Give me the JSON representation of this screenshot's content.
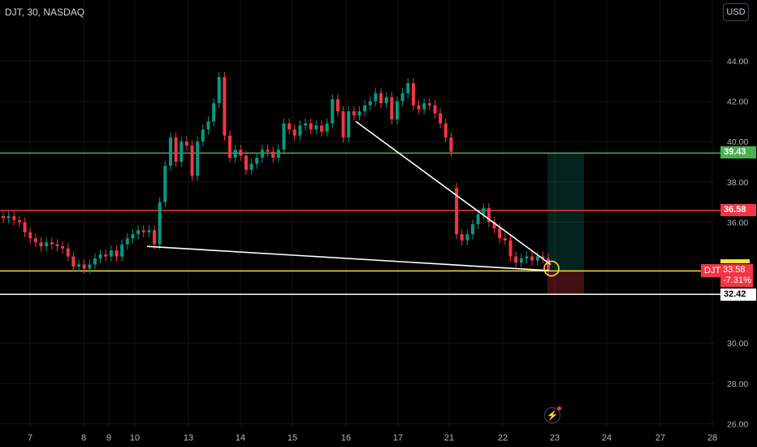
{
  "header": {
    "symbol_info": "DJT, 30, NASDAQ",
    "currency": "USD"
  },
  "levels": {
    "green": {
      "price": 39.43,
      "label": "39.43",
      "color": "#4caf50"
    },
    "red": {
      "price": 36.58,
      "label": "36.58",
      "color": "#f23645"
    },
    "yellow": {
      "price": 33.58,
      "color": "#f5e03a"
    },
    "white": {
      "price": 32.42,
      "label": "32.42",
      "color": "#ffffff"
    }
  },
  "last_price": {
    "ticker": "DJT",
    "price": "33.58",
    "change": "-7.31%"
  },
  "colors": {
    "up": "#089981",
    "down": "#f23645",
    "axis_text": "#b2b5be"
  },
  "icons": {
    "flash": "flash-icon"
  },
  "chart_data": {
    "type": "candlestick",
    "title": "",
    "y_axis_labels": [
      "44.00",
      "42.00",
      "40.00",
      "38.00",
      "36.00",
      "30.00",
      "28.00",
      "26.00"
    ],
    "x_axis_labels": [
      "7",
      "8",
      "9",
      "10",
      "13",
      "14",
      "15",
      "16",
      "17",
      "21",
      "22",
      "23",
      "24",
      "27",
      "28"
    ],
    "ylim": [
      26,
      46.4
    ],
    "candles": [
      {
        "x": "7",
        "o": 36.3,
        "c": 36.2
      },
      {
        "x": "7",
        "o": 36.2,
        "c": 36.3
      },
      {
        "x": "7",
        "o": 36.3,
        "c": 36.1
      },
      {
        "x": "7",
        "o": 36.1,
        "c": 36.0
      },
      {
        "x": "7",
        "o": 36.0,
        "c": 35.5
      },
      {
        "x": "7",
        "o": 35.5,
        "c": 35.2
      },
      {
        "x": "8",
        "o": 35.2,
        "c": 35.0
      },
      {
        "x": "8",
        "o": 35.0,
        "c": 34.8
      },
      {
        "x": "8",
        "o": 34.8,
        "c": 35.0
      },
      {
        "x": "8",
        "o": 35.0,
        "c": 34.9
      },
      {
        "x": "8",
        "o": 34.9,
        "c": 34.8
      },
      {
        "x": "8",
        "o": 34.8,
        "c": 34.7
      },
      {
        "x": "8",
        "o": 34.7,
        "c": 34.3
      },
      {
        "x": "8",
        "o": 34.3,
        "c": 33.8
      },
      {
        "x": "9",
        "o": 33.8,
        "c": 33.9
      },
      {
        "x": "9",
        "o": 33.9,
        "c": 33.7
      },
      {
        "x": "9",
        "o": 33.7,
        "c": 33.9
      },
      {
        "x": "9",
        "o": 33.9,
        "c": 34.2
      },
      {
        "x": "9",
        "o": 34.2,
        "c": 34.4
      },
      {
        "x": "9",
        "o": 34.4,
        "c": 34.3
      },
      {
        "x": "10",
        "o": 34.3,
        "c": 34.6
      },
      {
        "x": "10",
        "o": 34.6,
        "c": 34.3
      },
      {
        "x": "10",
        "o": 34.3,
        "c": 34.9
      },
      {
        "x": "10",
        "o": 34.9,
        "c": 35.2
      },
      {
        "x": "10",
        "o": 35.2,
        "c": 35.4
      },
      {
        "x": "10",
        "o": 35.4,
        "c": 35.6
      },
      {
        "x": "10",
        "o": 35.6,
        "c": 35.5
      },
      {
        "x": "10",
        "o": 35.5,
        "c": 35.6
      },
      {
        "x": "13",
        "o": 35.6,
        "c": 34.9
      },
      {
        "x": "13",
        "o": 34.9,
        "c": 37.0
      },
      {
        "x": "13",
        "o": 37.0,
        "c": 38.8
      },
      {
        "x": "13",
        "o": 38.8,
        "c": 40.2
      },
      {
        "x": "13",
        "o": 40.2,
        "c": 39.0
      },
      {
        "x": "13",
        "o": 39.0,
        "c": 40.0
      },
      {
        "x": "13",
        "o": 40.0,
        "c": 39.8
      },
      {
        "x": "13",
        "o": 39.8,
        "c": 38.3
      },
      {
        "x": "13",
        "o": 38.3,
        "c": 40.0
      },
      {
        "x": "13",
        "o": 40.0,
        "c": 40.6
      },
      {
        "x": "14",
        "o": 40.6,
        "c": 41.0
      },
      {
        "x": "14",
        "o": 41.0,
        "c": 41.9
      },
      {
        "x": "14",
        "o": 41.9,
        "c": 43.2
      },
      {
        "x": "14",
        "o": 43.2,
        "c": 40.3
      },
      {
        "x": "14",
        "o": 40.3,
        "c": 39.2
      },
      {
        "x": "14",
        "o": 39.2,
        "c": 39.6
      },
      {
        "x": "14",
        "o": 39.6,
        "c": 39.3
      },
      {
        "x": "14",
        "o": 39.3,
        "c": 38.6
      },
      {
        "x": "14",
        "o": 38.6,
        "c": 38.9
      },
      {
        "x": "15",
        "o": 38.9,
        "c": 39.2
      },
      {
        "x": "15",
        "o": 39.2,
        "c": 39.6
      },
      {
        "x": "15",
        "o": 39.6,
        "c": 39.5
      },
      {
        "x": "15",
        "o": 39.5,
        "c": 39.2
      },
      {
        "x": "15",
        "o": 39.2,
        "c": 39.6
      },
      {
        "x": "15",
        "o": 39.6,
        "c": 40.9
      },
      {
        "x": "15",
        "o": 40.9,
        "c": 40.6
      },
      {
        "x": "15",
        "o": 40.6,
        "c": 40.3
      },
      {
        "x": "15",
        "o": 40.3,
        "c": 40.8
      },
      {
        "x": "15",
        "o": 40.8,
        "c": 40.9
      },
      {
        "x": "15",
        "o": 40.9,
        "c": 40.6
      },
      {
        "x": "16",
        "o": 40.6,
        "c": 40.8
      },
      {
        "x": "16",
        "o": 40.8,
        "c": 40.5
      },
      {
        "x": "16",
        "o": 40.5,
        "c": 40.9
      },
      {
        "x": "16",
        "o": 40.9,
        "c": 42.1
      },
      {
        "x": "16",
        "o": 42.1,
        "c": 41.5
      },
      {
        "x": "16",
        "o": 41.5,
        "c": 40.2
      },
      {
        "x": "16",
        "o": 40.2,
        "c": 41.5
      },
      {
        "x": "16",
        "o": 41.5,
        "c": 41.3
      },
      {
        "x": "16",
        "o": 41.3,
        "c": 41.5
      },
      {
        "x": "17",
        "o": 41.5,
        "c": 41.8
      },
      {
        "x": "17",
        "o": 41.8,
        "c": 42.0
      },
      {
        "x": "17",
        "o": 42.0,
        "c": 42.4
      },
      {
        "x": "17",
        "o": 42.4,
        "c": 41.9
      },
      {
        "x": "17",
        "o": 41.9,
        "c": 42.2
      },
      {
        "x": "17",
        "o": 42.2,
        "c": 41.1
      },
      {
        "x": "17",
        "o": 41.1,
        "c": 42.0
      },
      {
        "x": "17",
        "o": 42.0,
        "c": 42.4
      },
      {
        "x": "17",
        "o": 42.4,
        "c": 42.9
      },
      {
        "x": "17",
        "o": 42.9,
        "c": 41.8
      },
      {
        "x": "17",
        "o": 41.8,
        "c": 41.6
      },
      {
        "x": "21",
        "o": 41.6,
        "c": 41.9
      },
      {
        "x": "21",
        "o": 41.9,
        "c": 41.8
      },
      {
        "x": "21",
        "o": 41.8,
        "c": 41.4
      },
      {
        "x": "21",
        "o": 41.4,
        "c": 40.9
      },
      {
        "x": "21",
        "o": 40.9,
        "c": 40.2
      },
      {
        "x": "21",
        "o": 40.2,
        "c": 39.5
      },
      {
        "x": "21",
        "o": 37.7,
        "c": 35.4
      },
      {
        "x": "21",
        "o": 35.4,
        "c": 35.1
      },
      {
        "x": "21",
        "o": 35.1,
        "c": 35.4
      },
      {
        "x": "21",
        "o": 35.4,
        "c": 35.9
      },
      {
        "x": "21",
        "o": 35.9,
        "c": 36.4
      },
      {
        "x": "21",
        "o": 36.4,
        "c": 36.7
      },
      {
        "x": "21",
        "o": 36.7,
        "c": 36.0
      },
      {
        "x": "22",
        "o": 36.0,
        "c": 35.7
      },
      {
        "x": "22",
        "o": 35.7,
        "c": 35.2
      },
      {
        "x": "22",
        "o": 35.2,
        "c": 35.1
      },
      {
        "x": "22",
        "o": 35.1,
        "c": 34.3
      },
      {
        "x": "22",
        "o": 34.3,
        "c": 34.0
      },
      {
        "x": "22",
        "o": 34.0,
        "c": 34.2
      },
      {
        "x": "22",
        "o": 34.2,
        "c": 34.3
      },
      {
        "x": "22",
        "o": 34.3,
        "c": 34.1
      },
      {
        "x": "22",
        "o": 34.1,
        "c": 34.3
      },
      {
        "x": "22",
        "o": 34.3,
        "c": 34.2
      },
      {
        "x": "22",
        "o": 34.2,
        "c": 33.6
      }
    ],
    "trendlines": [
      {
        "from": {
          "x": "16",
          "y": 41.0
        },
        "to": {
          "x": "23",
          "y": 33.9
        }
      },
      {
        "from": {
          "x": "10",
          "y": 34.8
        },
        "to": {
          "x": "23",
          "y": 33.6
        }
      }
    ],
    "position": {
      "entry": 33.58,
      "target": 39.43,
      "stop": 32.42
    }
  }
}
